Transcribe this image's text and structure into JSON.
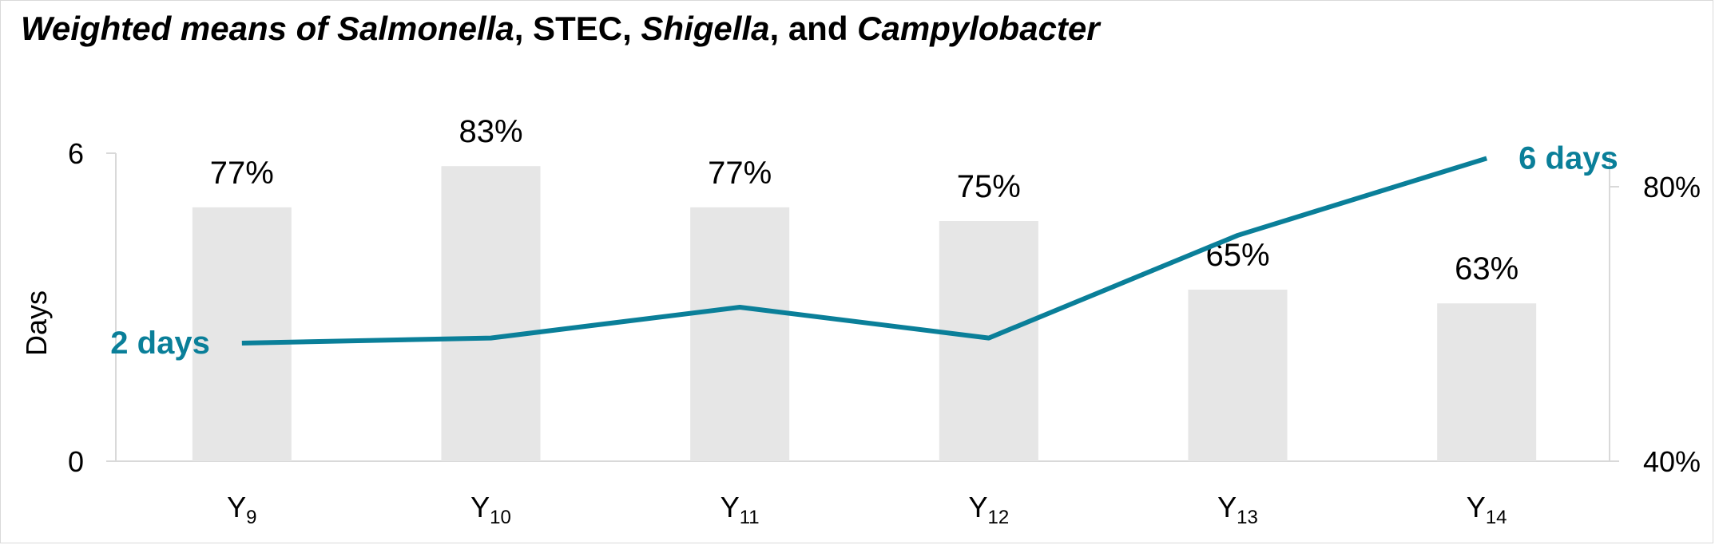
{
  "title": {
    "segments": [
      {
        "text": "Weighted means of ",
        "italic": true
      },
      {
        "text": "Salmonella",
        "italic": true
      },
      {
        "text": ", STEC, ",
        "italic": false
      },
      {
        "text": "Shigella",
        "italic": true
      },
      {
        "text": ", and ",
        "italic": false
      },
      {
        "text": "Campylobacter",
        "italic": true
      }
    ]
  },
  "chart_data": {
    "type": "bar",
    "categories": [
      {
        "base": "Y",
        "sub": "9"
      },
      {
        "base": "Y",
        "sub": "10"
      },
      {
        "base": "Y",
        "sub": "11"
      },
      {
        "base": "Y",
        "sub": "12"
      },
      {
        "base": "Y",
        "sub": "13"
      },
      {
        "base": "Y",
        "sub": "14"
      }
    ],
    "bar_series": {
      "values": [
        77,
        83,
        77,
        75,
        65,
        63
      ],
      "labels": [
        "77%",
        "83%",
        "77%",
        "75%",
        "65%",
        "63%"
      ],
      "axis": "right",
      "color": "#e6e6e6"
    },
    "line_series": {
      "values": [
        2.3,
        2.4,
        3.0,
        2.4,
        4.4,
        5.9
      ],
      "axis": "left",
      "color": "#0a7f99",
      "start_label": "2 days",
      "end_label": "6 days"
    },
    "left_axis": {
      "label": "Days",
      "range": [
        0,
        6
      ],
      "tick_labels": [
        "0",
        "6"
      ],
      "tick_values": [
        0,
        6
      ]
    },
    "right_axis": {
      "range": [
        40,
        85
      ],
      "tick_labels": [
        "40%",
        "80%"
      ],
      "tick_values": [
        40,
        80
      ]
    },
    "grid": false,
    "legend": "none",
    "colors": {
      "axis": "#d9d9d9",
      "text": "#000000",
      "line": "#0a7f99",
      "bar": "#e6e6e6"
    }
  }
}
